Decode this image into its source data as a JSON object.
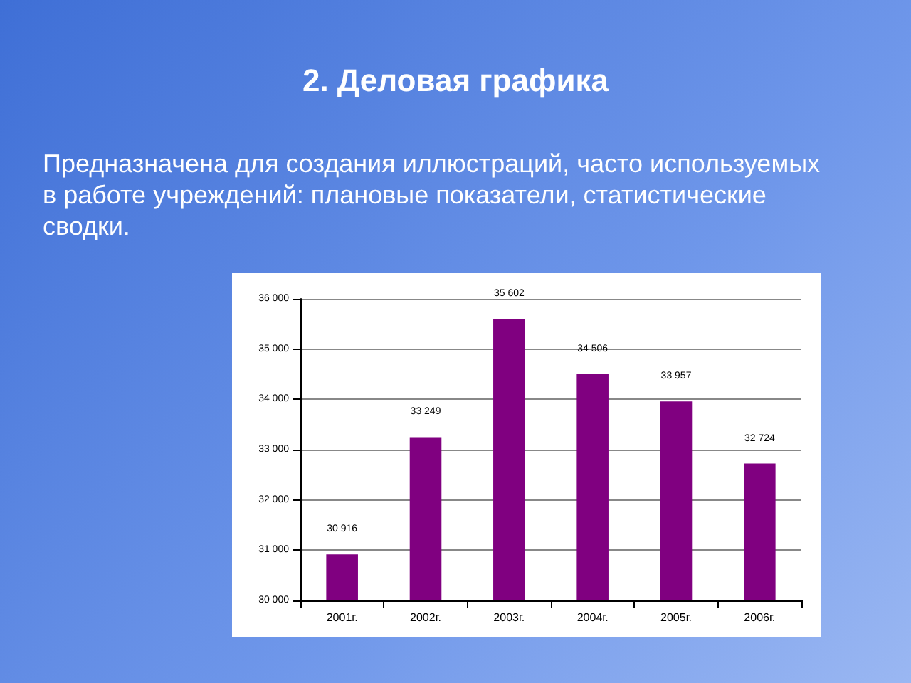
{
  "chart_data": {
    "type": "bar",
    "title": "2. Деловая графика",
    "subtitle": "Предназначена для создания иллюстраций, часто используемых в работе учреждений: плановые показатели, статистические сводки.",
    "categories": [
      "2001г.",
      "2002г.",
      "2003г.",
      "2004г.",
      "2005г.",
      "2006г."
    ],
    "values": [
      30916,
      33249,
      35602,
      34506,
      33957,
      32724
    ],
    "value_labels": [
      "30 916",
      "33 249",
      "35 602",
      "34 506",
      "33 957",
      "32 724"
    ],
    "color": "#800080",
    "ylim": [
      30000,
      36000
    ],
    "yticks": [
      {
        "value": 30000,
        "label": "30 000"
      },
      {
        "value": 31000,
        "label": "31 000"
      },
      {
        "value": 32000,
        "label": "32 000"
      },
      {
        "value": 33000,
        "label": "33 000"
      },
      {
        "value": 34000,
        "label": "34 000"
      },
      {
        "value": 35000,
        "label": "35 000"
      },
      {
        "value": 36000,
        "label": "36 000"
      }
    ],
    "grid": "y"
  }
}
